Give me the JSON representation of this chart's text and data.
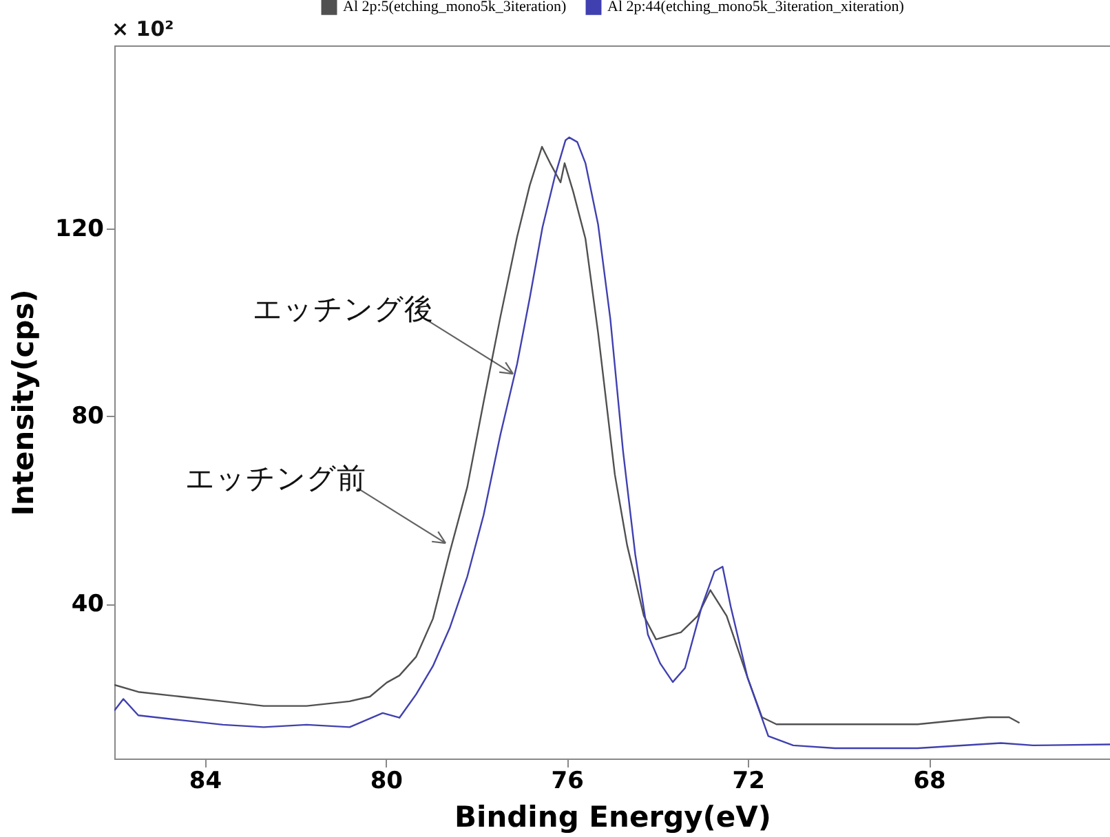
{
  "chart_data": {
    "type": "line",
    "xlabel": "Binding Energy(eV)",
    "ylabel": "Intensity(cps)",
    "xlim": [
      86,
      64
    ],
    "ylim": [
      7,
      159
    ],
    "xticks": [
      84,
      80,
      76,
      72,
      68
    ],
    "yticks": [
      40,
      80,
      120
    ],
    "grid": false,
    "legend": "top",
    "annotations": [
      "× 10²",
      {
        "text": "エッチング後",
        "x": 77.19,
        "y": 89
      },
      {
        "text": "エッチング前",
        "x": 78.68,
        "y": 52.9
      }
    ],
    "series": [
      {
        "name": "Al 2p:5(etching_mono5k_3iteration)",
        "color": "#505050",
        "x": [
          86.0,
          85.47,
          84.54,
          83.6,
          82.7,
          81.75,
          80.8,
          80.35,
          79.98,
          79.7,
          79.33,
          78.96,
          78.59,
          78.2,
          77.84,
          77.47,
          77.1,
          76.82,
          76.55,
          76.37,
          76.14,
          76.05,
          75.86,
          75.59,
          75.31,
          74.94,
          74.67,
          74.3,
          74.03,
          73.48,
          73.11,
          72.83,
          72.47,
          72.01,
          71.69,
          71.37,
          70.08,
          68.25,
          66.69,
          66.23,
          66.0
        ],
        "values": [
          22.7,
          21.2,
          20.2,
          19.2,
          18.2,
          18.2,
          19.2,
          20.2,
          23.2,
          24.7,
          28.7,
          36.8,
          50.9,
          64.9,
          83.0,
          101.1,
          118.2,
          129.2,
          137.4,
          133.9,
          129.8,
          133.9,
          127.8,
          117.8,
          97.7,
          67.5,
          52.5,
          37.4,
          32.4,
          33.9,
          37.4,
          42.9,
          37.4,
          24.3,
          15.8,
          14.3,
          14.3,
          14.3,
          15.8,
          15.8,
          14.6
        ]
      },
      {
        "name": "Al 2p:44(etching_mono5k_3iteration_xiteration)",
        "color": "#4040b0",
        "x": [
          86.0,
          85.8,
          85.47,
          84.54,
          83.6,
          82.7,
          81.75,
          80.8,
          80.07,
          79.7,
          79.33,
          78.96,
          78.59,
          78.2,
          77.84,
          77.47,
          77.1,
          76.82,
          76.54,
          76.26,
          76.03,
          75.95,
          75.77,
          75.59,
          75.31,
          75.04,
          74.76,
          74.49,
          74.21,
          73.94,
          73.66,
          73.39,
          73.02,
          72.74,
          72.56,
          72.38,
          72.01,
          71.55,
          71.0,
          70.08,
          68.25,
          66.41,
          65.7,
          64.0
        ],
        "values": [
          17.2,
          19.7,
          16.2,
          15.2,
          14.2,
          13.7,
          14.2,
          13.7,
          16.7,
          15.7,
          20.7,
          26.7,
          34.8,
          45.8,
          58.9,
          76.0,
          91.1,
          105.2,
          120.2,
          131.3,
          138.8,
          139.4,
          138.4,
          133.9,
          120.8,
          100.7,
          72.6,
          50.5,
          33.4,
          27.3,
          23.3,
          26.3,
          39.4,
          46.9,
          47.9,
          39.4,
          24.3,
          11.8,
          9.8,
          9.2,
          9.2,
          10.3,
          9.8,
          10.0
        ]
      }
    ]
  }
}
